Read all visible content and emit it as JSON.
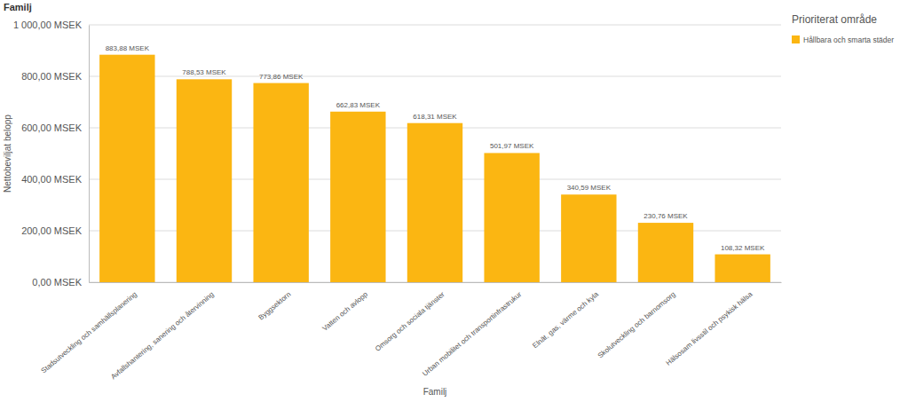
{
  "chart_data": {
    "type": "bar",
    "title": "Familj",
    "x_label": "Familj",
    "y_label": "Nettobeviljat belopp",
    "legend_title": "Prioriterat område",
    "categories": [
      "Stadsutveckling och samhällsplanering",
      "Avfallshantering, sanering och återvinning",
      "Byggsektorn",
      "Vatten och avlopp",
      "Omsorg och sociala tjänster",
      "Urban mobilitet och transportinfrastrukur",
      "Elnät, gas, värme och kyla",
      "Skolutveckling och barnomsorg",
      "Hälsosam livsstil och psykisk hälsa"
    ],
    "series": [
      {
        "name": "Hållbara och smarta städer",
        "color": "#fbb612",
        "values": [
          883.88,
          788.53,
          773.86,
          662.83,
          618.31,
          501.97,
          340.59,
          230.76,
          108.32
        ],
        "value_labels": [
          "883,88 MSEK",
          "788,53 MSEK",
          "773,86 MSEK",
          "662,83 MSEK",
          "618,31 MSEK",
          "501,97 MSEK",
          "340,59 MSEK",
          "230,76 MSEK",
          "108,32 MSEK"
        ]
      }
    ],
    "ylim": [
      0,
      1000
    ],
    "yticks": [
      {
        "value": 0,
        "label": "0,00 MSEK"
      },
      {
        "value": 200,
        "label": "200,00 MSEK"
      },
      {
        "value": 400,
        "label": "400,00 MSEK"
      },
      {
        "value": 600,
        "label": "600,00 MSEK"
      },
      {
        "value": 800,
        "label": "800,00 MSEK"
      },
      {
        "value": 1000,
        "label": "1 000,00 MSEK"
      }
    ],
    "grid": true,
    "legend": "upper right",
    "data_labels": true
  }
}
